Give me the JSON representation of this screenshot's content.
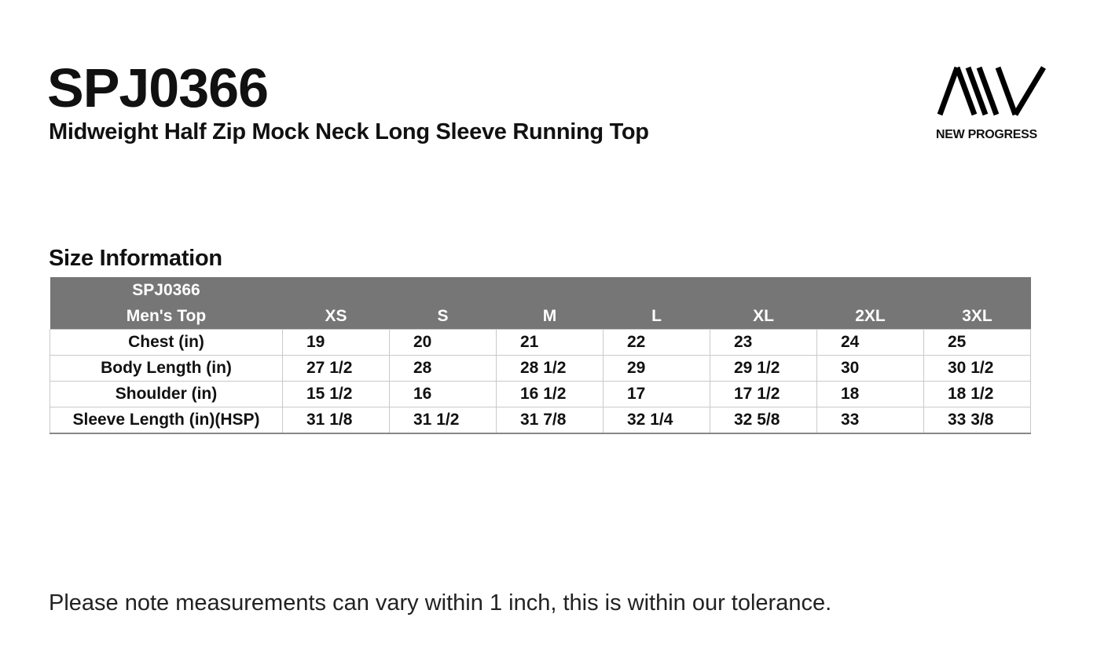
{
  "header": {
    "code": "SPJ0366",
    "subtitle": "Midweight Half Zip Mock Neck Long Sleeve Running Top"
  },
  "brand": {
    "name": "NEW PROGRESS",
    "logo_icon": "aiv-logo"
  },
  "section_title": "Size Information",
  "table": {
    "header_line1": "SPJ0366",
    "header_line2": "Men's Top",
    "sizes": [
      "XS",
      "S",
      "M",
      "L",
      "XL",
      "2XL",
      "3XL"
    ],
    "header_color": "#767676",
    "rows": [
      {
        "label": "Chest (in)",
        "values": [
          "19",
          "20",
          "21",
          "22",
          "23",
          "24",
          "25"
        ]
      },
      {
        "label": "Body Length (in)",
        "values": [
          "27 1/2",
          "28",
          "28 1/2",
          "29",
          "29 1/2",
          "30",
          "30 1/2"
        ]
      },
      {
        "label": "Shoulder (in)",
        "values": [
          "15 1/2",
          "16",
          "16 1/2",
          "17",
          "17 1/2",
          "18",
          "18 1/2"
        ]
      },
      {
        "label": "Sleeve Length (in)(HSP)",
        "values": [
          "31 1/8",
          "31 1/2",
          "31 7/8",
          "32 1/4",
          "32 5/8",
          "33",
          "33 3/8"
        ]
      }
    ]
  },
  "note": "Please note measurements can vary within 1 inch, this is within our tolerance."
}
